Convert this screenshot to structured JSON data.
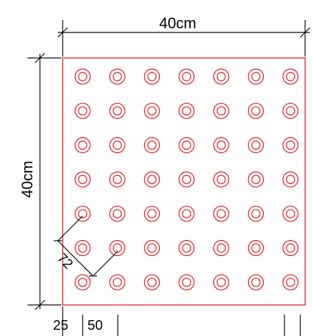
{
  "diagram": {
    "labels": {
      "width": "40cm",
      "height": "40cm",
      "margin": "25",
      "spacing": "50",
      "diagonal": "72"
    },
    "grid": {
      "rows": 7,
      "columns": 7
    },
    "colors": {
      "tile": "#e4141b",
      "dimension": "#000000"
    }
  }
}
